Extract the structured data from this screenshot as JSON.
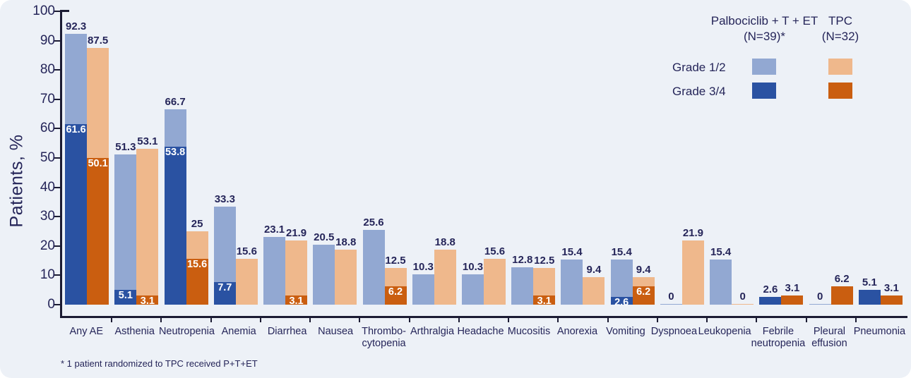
{
  "colors": {
    "background": "#edf1f7",
    "navy_text": "#252559",
    "axis": "#1b1b33",
    "palbo_light": "#92a8d2",
    "palbo_dark": "#2a52a2",
    "tpc_light": "#efb88c",
    "tpc_dark": "#ca5e10",
    "inside_label": "#ffffff"
  },
  "legend": {
    "col1_title": "Palbociclib + T + ET",
    "col1_sub": "(N=39)*",
    "col2_title": "TPC",
    "col2_sub": "(N=32)",
    "row1_label": "Grade 1/2",
    "row2_label": "Grade 3/4"
  },
  "footnote": "* 1 patient randomized to TPC received P+T+ET",
  "chart_data": {
    "type": "bar",
    "title": "",
    "xlabel": "",
    "ylabel": "Patients, %",
    "ylim": [
      0,
      100
    ],
    "yticks": [
      0,
      10,
      20,
      30,
      40,
      50,
      60,
      70,
      80,
      90,
      100
    ],
    "grid": false,
    "legend_position": "top-right",
    "note": "Stacked/overlaid bars: total bar height = all-grade incidence (Grade 1/2 light color), darker bottom segment = Grade 3/4 incidence. all34=true means the entire bar is Grade 3/4.",
    "categories": [
      "Any AE",
      "Asthenia",
      "Neutropenia",
      "Anemia",
      "Diarrhea",
      "Nausea",
      "Thrombo-\ncytopenia",
      "Arthralgia",
      "Headache",
      "Mucositis",
      "Anorexia",
      "Vomiting",
      "Dyspnoea",
      "Leukopenia",
      "Febrile\nneutropenia",
      "Pleural\neffusion",
      "Pneumonia"
    ],
    "series": [
      {
        "name": "Palbociclib + T + ET total",
        "values": [
          92.3,
          51.3,
          66.7,
          33.3,
          23.1,
          20.5,
          25.6,
          10.3,
          10.3,
          12.8,
          15.4,
          15.4,
          0,
          15.4,
          2.6,
          0,
          5.1
        ]
      },
      {
        "name": "Palbociclib + T + ET Grade 3/4",
        "values": [
          61.6,
          5.1,
          53.8,
          7.7,
          null,
          null,
          null,
          null,
          null,
          null,
          null,
          2.6,
          null,
          null,
          2.6,
          null,
          5.1
        ]
      },
      {
        "name": "TPC total",
        "values": [
          87.5,
          53.1,
          25,
          15.6,
          21.9,
          18.8,
          12.5,
          18.8,
          15.6,
          12.5,
          9.4,
          9.4,
          21.9,
          0,
          3.1,
          6.2,
          3.1
        ]
      },
      {
        "name": "TPC Grade 3/4",
        "values": [
          50.1,
          3.1,
          15.6,
          null,
          3.1,
          null,
          6.2,
          null,
          null,
          3.1,
          null,
          6.2,
          null,
          null,
          3.1,
          6.2,
          3.1
        ]
      }
    ],
    "groups": [
      {
        "category": "Any AE",
        "palbo": {
          "total": "92.3",
          "g34": "61.6"
        },
        "tpc": {
          "total": "87.5",
          "g34": "50.1"
        }
      },
      {
        "category": "Asthenia",
        "palbo": {
          "total": "51.3",
          "g34": "5.1"
        },
        "tpc": {
          "total": "53.1",
          "g34": "3.1"
        }
      },
      {
        "category": "Neutropenia",
        "palbo": {
          "total": "66.7",
          "g34": "53.8"
        },
        "tpc": {
          "total": "25",
          "g34": "15.6"
        }
      },
      {
        "category": "Anemia",
        "palbo": {
          "total": "33.3",
          "g34": "7.7"
        },
        "tpc": {
          "total": "15.6",
          "g34": null
        }
      },
      {
        "category": "Diarrhea",
        "palbo": {
          "total": "23.1",
          "g34": null
        },
        "tpc": {
          "total": "21.9",
          "g34": "3.1"
        }
      },
      {
        "category": "Nausea",
        "palbo": {
          "total": "20.5",
          "g34": null
        },
        "tpc": {
          "total": "18.8",
          "g34": null
        }
      },
      {
        "category": "Thrombo-\ncytopenia",
        "palbo": {
          "total": "25.6",
          "g34": null
        },
        "tpc": {
          "total": "12.5",
          "g34": "6.2"
        }
      },
      {
        "category": "Arthralgia",
        "palbo": {
          "total": "10.3",
          "g34": null
        },
        "tpc": {
          "total": "18.8",
          "g34": null
        }
      },
      {
        "category": "Headache",
        "palbo": {
          "total": "10.3",
          "g34": null
        },
        "tpc": {
          "total": "15.6",
          "g34": null
        }
      },
      {
        "category": "Mucositis",
        "palbo": {
          "total": "12.8",
          "g34": null
        },
        "tpc": {
          "total": "12.5",
          "g34": "3.1"
        }
      },
      {
        "category": "Anorexia",
        "palbo": {
          "total": "15.4",
          "g34": null
        },
        "tpc": {
          "total": "9.4",
          "g34": null
        }
      },
      {
        "category": "Vomiting",
        "palbo": {
          "total": "15.4",
          "g34": "2.6"
        },
        "tpc": {
          "total": "9.4",
          "g34": "6.2"
        }
      },
      {
        "category": "Dyspnoea",
        "palbo": {
          "total": "0",
          "g34": null
        },
        "tpc": {
          "total": "21.9",
          "g34": null
        }
      },
      {
        "category": "Leukopenia",
        "palbo": {
          "total": "15.4",
          "g34": null
        },
        "tpc": {
          "total": "0",
          "g34": null
        }
      },
      {
        "category": "Febrile\nneutropenia",
        "palbo": {
          "total": "2.6",
          "g34": "2.6",
          "all34": true
        },
        "tpc": {
          "total": "3.1",
          "g34": "3.1",
          "all34": true
        }
      },
      {
        "category": "Pleural\neffusion",
        "palbo": {
          "total": "0",
          "g34": null
        },
        "tpc": {
          "total": "6.2",
          "g34": "6.2",
          "all34": true
        }
      },
      {
        "category": "Pneumonia",
        "palbo": {
          "total": "5.1",
          "g34": "5.1",
          "all34": true
        },
        "tpc": {
          "total": "3.1",
          "g34": "3.1",
          "all34": true
        }
      }
    ]
  }
}
